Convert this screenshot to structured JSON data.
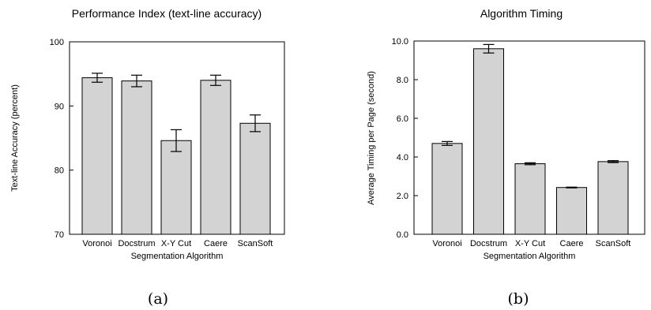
{
  "chart_data": [
    {
      "type": "bar",
      "title": "Performance Index (text-line accuracy)",
      "xlabel": "Segmentation Algorithm",
      "ylabel": "Text-line Accuracy (percent)",
      "categories": [
        "Voronoi",
        "Docstrum",
        "X-Y Cut",
        "Caere",
        "ScanSoft"
      ],
      "values": [
        94.4,
        93.9,
        84.6,
        94.0,
        87.3
      ],
      "error_low": [
        93.7,
        93.0,
        82.9,
        93.2,
        86.0
      ],
      "error_high": [
        95.1,
        94.8,
        86.3,
        94.8,
        88.6
      ],
      "ylim": [
        70,
        100
      ],
      "yticks": [
        70,
        80,
        90,
        100
      ],
      "ytick_labels": [
        "70",
        "80",
        "90",
        "100"
      ],
      "bar_color": "#d3d3d3",
      "grid": false,
      "panel_label": "(a)"
    },
    {
      "type": "bar",
      "title": "Algorithm Timing",
      "xlabel": "Segmentation Algorithm",
      "ylabel": "Average Timing per Page (second)",
      "categories": [
        "Voronoi",
        "Docstrum",
        "X-Y Cut",
        "Caere",
        "ScanSoft"
      ],
      "values": [
        4.7,
        9.6,
        3.65,
        2.42,
        3.76
      ],
      "error_low": [
        4.6,
        9.38,
        3.6,
        2.4,
        3.71
      ],
      "error_high": [
        4.8,
        9.82,
        3.7,
        2.44,
        3.81
      ],
      "ylim": [
        0,
        10
      ],
      "yticks": [
        0,
        2,
        4,
        6,
        8,
        10
      ],
      "ytick_labels": [
        "0.0",
        "2.0",
        "4.0",
        "6.0",
        "8.0",
        "10.0"
      ],
      "bar_color": "#d3d3d3",
      "grid": false,
      "panel_label": "(b)"
    }
  ]
}
